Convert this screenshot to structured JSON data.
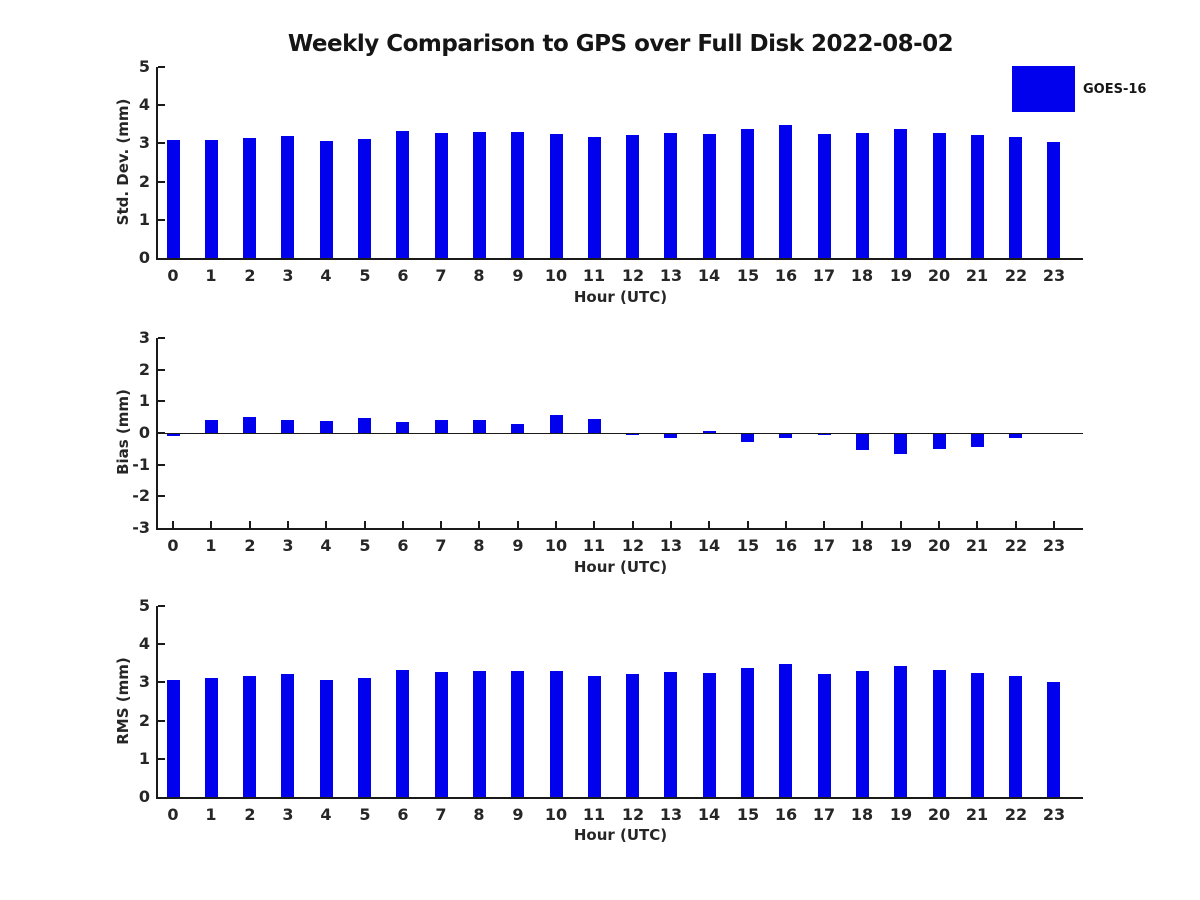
{
  "title": "Weekly Comparison to GPS over Full Disk 2022-08-02",
  "legend": {
    "label": "GOES-16",
    "color": "#0101ee"
  },
  "colors": {
    "bar": "#0101ee",
    "axis": "#1a1a1a",
    "background": "#ffffff"
  },
  "chart_data": [
    {
      "type": "bar",
      "panel": "std-dev",
      "title": "",
      "ylabel": "Std. Dev. (mm)",
      "xlabel": "Hour (UTC)",
      "ylim": [
        0,
        5
      ],
      "yticks": [
        0,
        1,
        2,
        3,
        4,
        5
      ],
      "grid": false,
      "legend_position": "upper-right-outside",
      "categories": [
        "0",
        "1",
        "2",
        "3",
        "4",
        "5",
        "6",
        "7",
        "8",
        "9",
        "10",
        "11",
        "12",
        "13",
        "14",
        "15",
        "16",
        "17",
        "18",
        "19",
        "20",
        "21",
        "22",
        "23"
      ],
      "series": [
        {
          "name": "GOES-16",
          "values": [
            3.09,
            3.08,
            3.14,
            3.2,
            3.05,
            3.12,
            3.33,
            3.27,
            3.3,
            3.3,
            3.24,
            3.17,
            3.22,
            3.28,
            3.24,
            3.38,
            3.47,
            3.24,
            3.28,
            3.38,
            3.28,
            3.22,
            3.18,
            3.03
          ]
        }
      ]
    },
    {
      "type": "bar",
      "panel": "bias",
      "title": "",
      "ylabel": "Bias (mm)",
      "xlabel": "Hour (UTC)",
      "ylim": [
        -3,
        3
      ],
      "yticks": [
        -3,
        -2,
        -1,
        0,
        1,
        2,
        3
      ],
      "grid": false,
      "zero_line": true,
      "categories": [
        "0",
        "1",
        "2",
        "3",
        "4",
        "5",
        "6",
        "7",
        "8",
        "9",
        "10",
        "11",
        "12",
        "13",
        "14",
        "15",
        "16",
        "17",
        "18",
        "19",
        "20",
        "21",
        "22",
        "23"
      ],
      "series": [
        {
          "name": "GOES-16",
          "values": [
            -0.08,
            0.4,
            0.5,
            0.42,
            0.38,
            0.46,
            0.35,
            0.4,
            0.4,
            0.28,
            0.56,
            0.43,
            -0.05,
            -0.17,
            0.06,
            -0.28,
            -0.16,
            -0.05,
            -0.53,
            -0.65,
            -0.51,
            -0.45,
            -0.16,
            0.0
          ]
        }
      ]
    },
    {
      "type": "bar",
      "panel": "rms",
      "title": "",
      "ylabel": "RMS (mm)",
      "xlabel": "Hour (UTC)",
      "ylim": [
        0,
        5
      ],
      "yticks": [
        0,
        1,
        2,
        3,
        4,
        5
      ],
      "grid": false,
      "categories": [
        "0",
        "1",
        "2",
        "3",
        "4",
        "5",
        "6",
        "7",
        "8",
        "9",
        "10",
        "11",
        "12",
        "13",
        "14",
        "15",
        "16",
        "17",
        "18",
        "19",
        "20",
        "21",
        "22",
        "23"
      ],
      "series": [
        {
          "name": "GOES-16",
          "values": [
            3.05,
            3.11,
            3.16,
            3.21,
            3.05,
            3.12,
            3.32,
            3.27,
            3.31,
            3.29,
            3.29,
            3.16,
            3.22,
            3.28,
            3.24,
            3.37,
            3.47,
            3.22,
            3.3,
            3.43,
            3.32,
            3.24,
            3.18,
            3.0
          ]
        }
      ]
    }
  ]
}
